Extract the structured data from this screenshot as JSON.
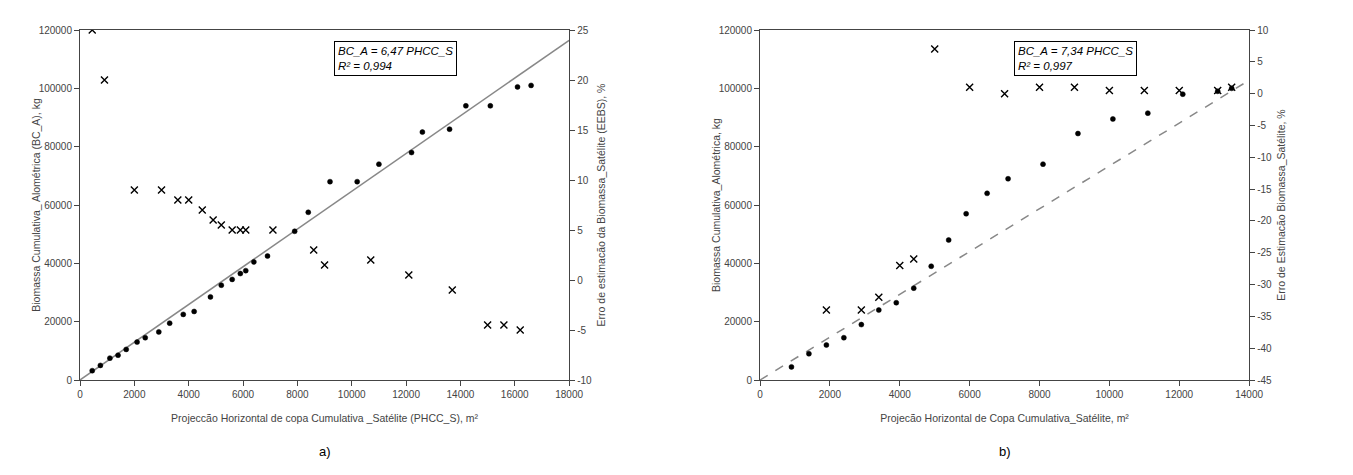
{
  "chart_data": [
    {
      "type": "scatter",
      "subtitle": "a)",
      "annotation": [
        "BC_A = 6,47 PHCC_S",
        "R² = 0,994"
      ],
      "xlabel": "Projeccão Horizontal de copa Cumulativa _Satélite (PHCC_S), m²",
      "ylabel": "Biomassa Cumulativa_ Alométrica (BC_A), kg",
      "y2label": "Erro de estimacão da Biomassa_Satélite (EEBS), %",
      "xlim": [
        0,
        18000
      ],
      "ylim": [
        0,
        120000
      ],
      "y2lim": [
        -10,
        25
      ],
      "xticks": [
        0,
        2000,
        4000,
        6000,
        8000,
        10000,
        12000,
        14000,
        16000,
        18000
      ],
      "yticks": [
        0,
        20000,
        40000,
        60000,
        80000,
        100000,
        120000
      ],
      "y2ticks": [
        -10,
        -5,
        0,
        5,
        10,
        15,
        20,
        25
      ],
      "grid": false,
      "series": [
        {
          "type": "line",
          "color": "#888888",
          "line_style": "solid",
          "x": [
            0,
            18000
          ],
          "values": [
            0,
            116460
          ]
        },
        {
          "type": "scatter",
          "marker": "circle",
          "color": "#000000",
          "x": [
            450,
            750,
            1100,
            1400,
            1700,
            2100,
            2400,
            2900,
            3300,
            3800,
            4200,
            4800,
            5200,
            5600,
            5900,
            6100,
            6400,
            6900,
            7900,
            8400,
            9200,
            10200,
            11000,
            12200,
            12600,
            13600,
            14200,
            15100,
            16100,
            16600
          ],
          "values": [
            3200,
            5000,
            7500,
            8500,
            10500,
            13000,
            14500,
            16500,
            19500,
            22500,
            23500,
            28500,
            32500,
            34500,
            36500,
            37500,
            40500,
            42500,
            51000,
            57500,
            68000,
            68000,
            74000,
            78000,
            85000,
            86000,
            94000,
            94000,
            100500,
            101000
          ]
        },
        {
          "type": "scatter",
          "marker": "x",
          "color": "#000000",
          "axis": "y2",
          "x": [
            450,
            900,
            2000,
            3000,
            3600,
            4000,
            4500,
            4900,
            5200,
            5600,
            5900,
            6100,
            7100,
            8600,
            9000,
            10700,
            12100,
            13700,
            15000,
            15600,
            16200
          ],
          "values": [
            25,
            20,
            9,
            9,
            8,
            8,
            7,
            6,
            5.5,
            5,
            5,
            5,
            5,
            3,
            1.5,
            2,
            0.5,
            -1,
            -4.5,
            -4.5,
            -5
          ]
        }
      ]
    },
    {
      "type": "scatter",
      "subtitle": "b)",
      "annotation": [
        "BC_A = 7,34 PHCC_S",
        "R² = 0,997"
      ],
      "xlabel": "Projecão Horizontal de Copa Cumulativa_Satélite, m²",
      "ylabel": "Biomassa Cumulativa_Alométrica, kg",
      "y2label": "Erro de Estimacão Biomassa_Satélite, %",
      "xlim": [
        0,
        14000
      ],
      "ylim": [
        0,
        120000
      ],
      "y2lim": [
        -45,
        10
      ],
      "xticks": [
        0,
        2000,
        4000,
        6000,
        8000,
        10000,
        12000,
        14000
      ],
      "yticks": [
        0,
        20000,
        40000,
        60000,
        80000,
        100000,
        120000
      ],
      "y2ticks": [
        -45,
        -40,
        -35,
        -30,
        -25,
        -20,
        -15,
        -10,
        -5,
        0,
        5,
        10
      ],
      "grid": false,
      "series": [
        {
          "type": "line",
          "color": "#888888",
          "line_style": "dashed",
          "x": [
            0,
            14000
          ],
          "values": [
            0,
            102760
          ]
        },
        {
          "type": "scatter",
          "marker": "circle",
          "color": "#000000",
          "x": [
            900,
            1400,
            1900,
            2400,
            2900,
            3400,
            3900,
            4400,
            4900,
            5400,
            5900,
            6500,
            7100,
            8100,
            9100,
            10100,
            11100,
            12100,
            13100,
            13500
          ],
          "values": [
            4500,
            9000,
            12000,
            14500,
            19000,
            24000,
            26500,
            31500,
            39000,
            48000,
            57000,
            64000,
            69000,
            74000,
            84500,
            89500,
            91500,
            98000,
            99000,
            100000
          ]
        },
        {
          "type": "scatter",
          "marker": "x",
          "color": "#000000",
          "axis": "y2",
          "x": [
            1900,
            2900,
            3400,
            4000,
            4400,
            5000,
            6000,
            7000,
            8000,
            9000,
            10000,
            11000,
            12000,
            13100,
            13500
          ],
          "values": [
            -34,
            -34,
            -32,
            -27,
            -26,
            7,
            1,
            0,
            1,
            1,
            0.5,
            0.5,
            0.5,
            0.5,
            1
          ]
        }
      ]
    }
  ]
}
